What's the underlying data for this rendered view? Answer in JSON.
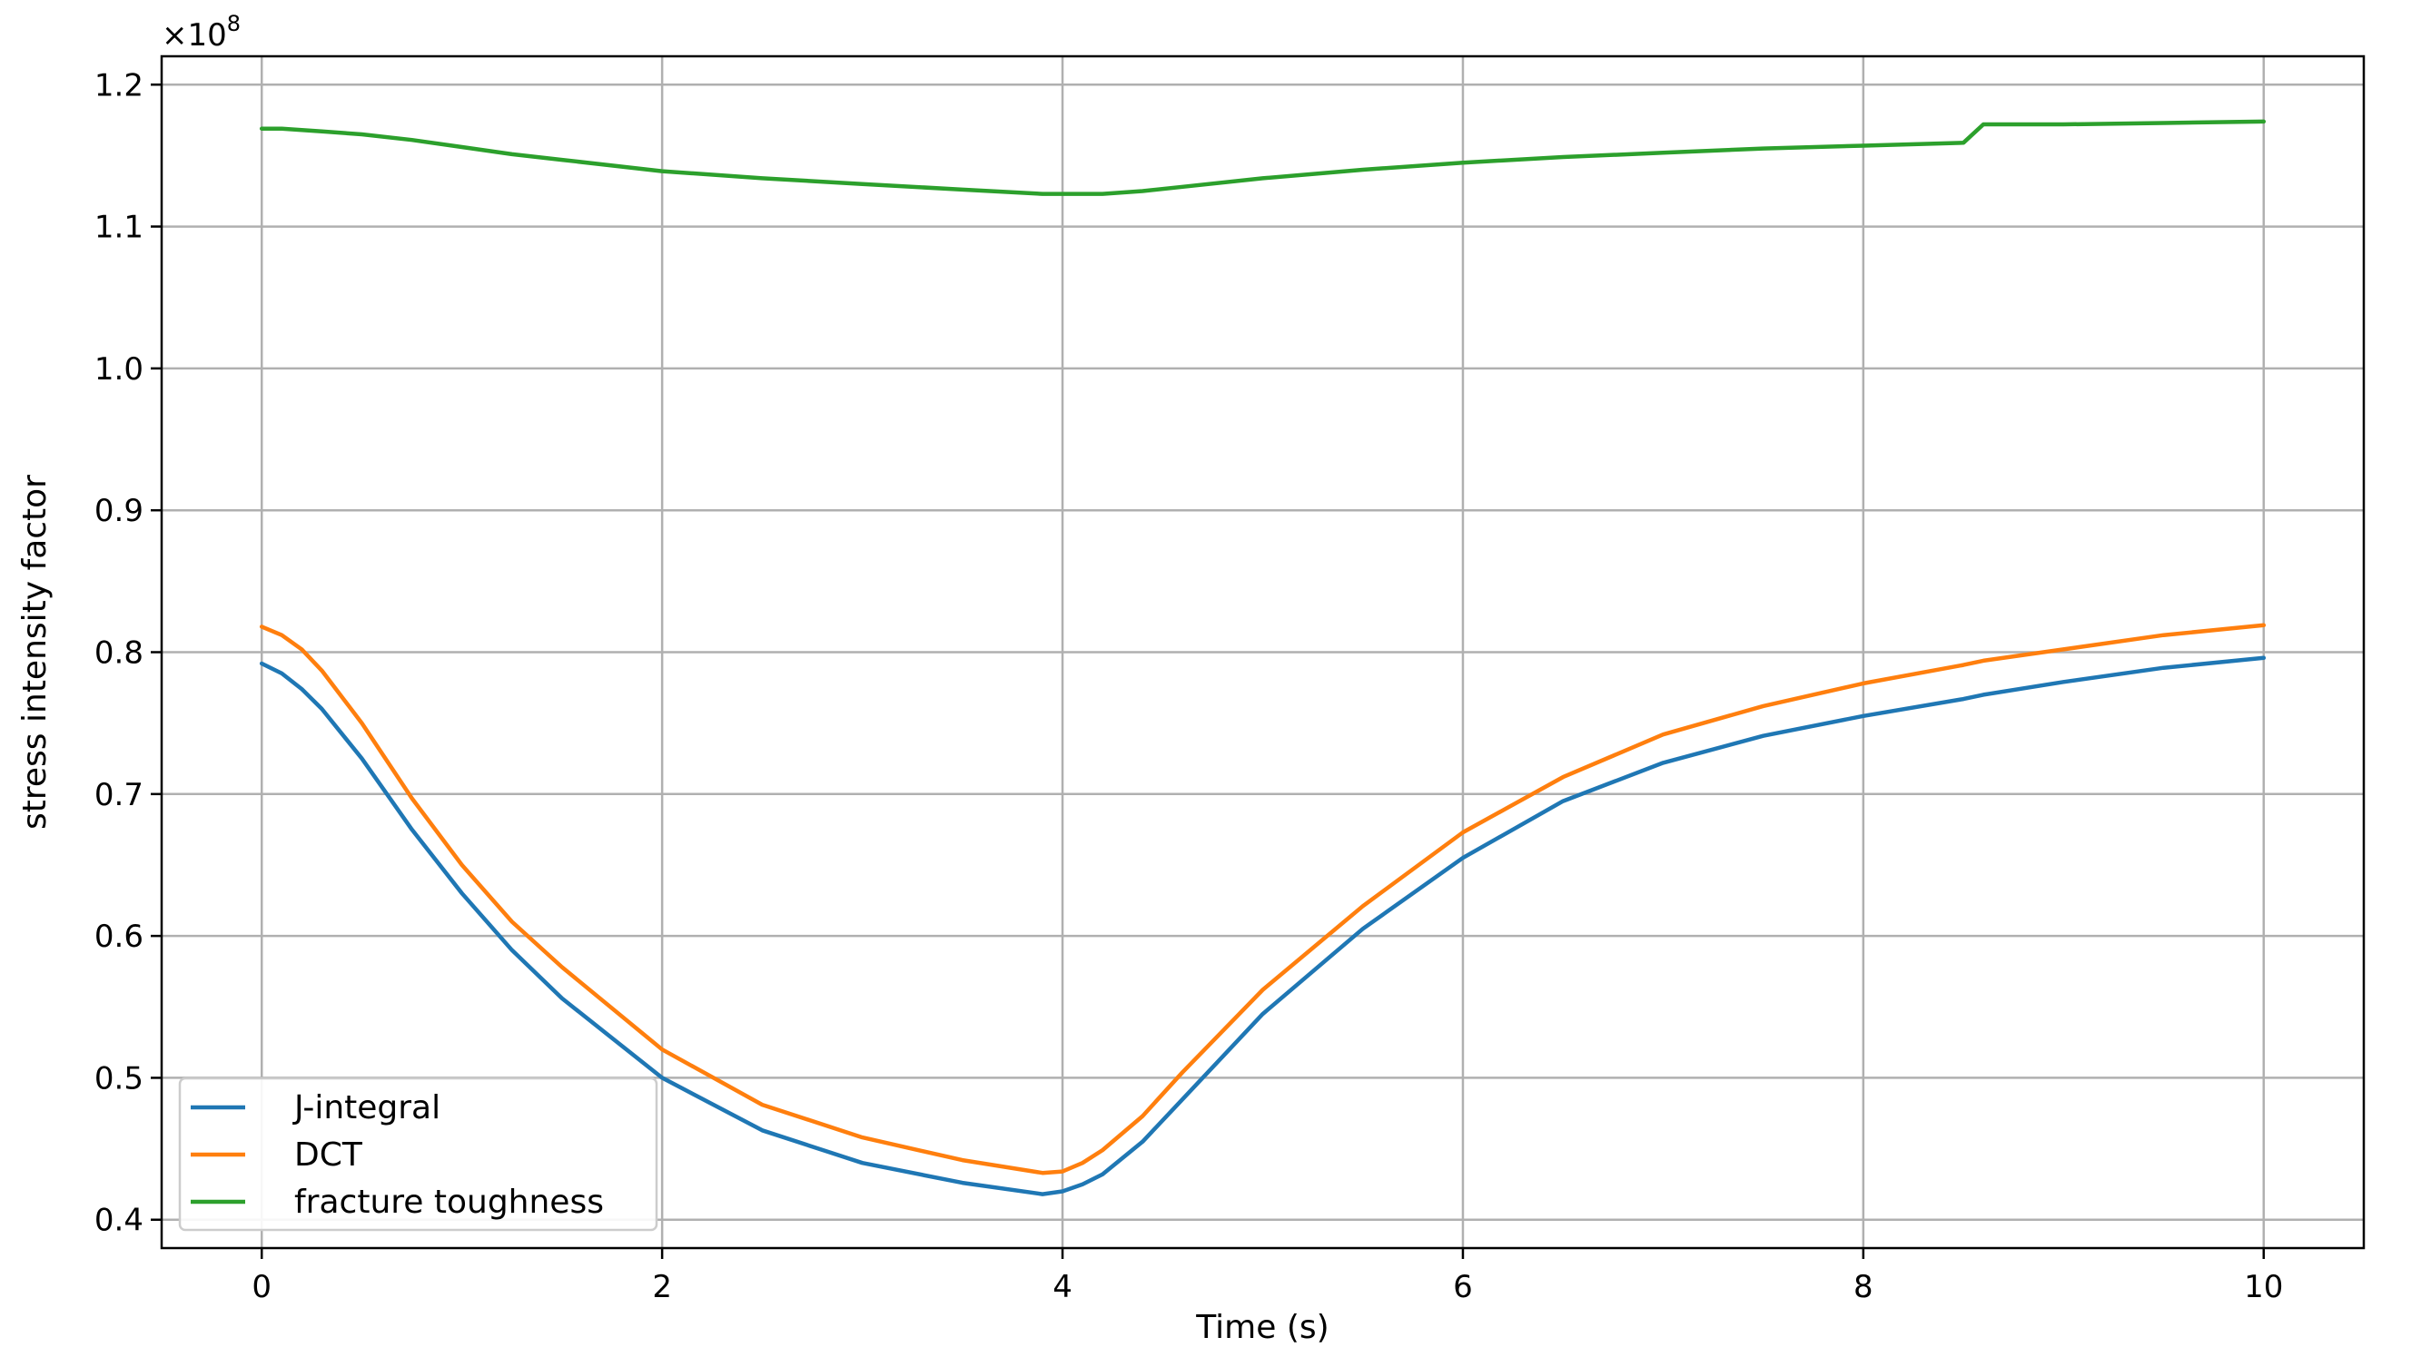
{
  "chart_data": {
    "type": "line",
    "title": "",
    "xlabel": "Time (s)",
    "ylabel": "stress intensity factor",
    "xlim": [
      -0.5,
      10.5
    ],
    "ylim": [
      0.38,
      1.22
    ],
    "offset_text": "×10",
    "offset_exponent": "8",
    "grid": true,
    "legend_position": "lower-left",
    "x_ticks": [
      0,
      2,
      4,
      6,
      8,
      10
    ],
    "x_tick_labels": [
      "0",
      "2",
      "4",
      "6",
      "8",
      "10"
    ],
    "y_ticks": [
      0.4,
      0.5,
      0.6,
      0.7,
      0.8,
      0.9,
      1.0,
      1.1,
      1.2
    ],
    "y_tick_labels": [
      "0.4",
      "0.5",
      "0.6",
      "0.7",
      "0.8",
      "0.9",
      "1.0",
      "1.1",
      "1.2"
    ],
    "x": [
      0,
      0.1,
      0.2,
      0.3,
      0.5,
      0.75,
      1.0,
      1.25,
      1.5,
      2.0,
      2.5,
      3.0,
      3.5,
      3.9,
      4.0,
      4.1,
      4.2,
      4.4,
      4.6,
      5.0,
      5.5,
      6.0,
      6.5,
      7.0,
      7.5,
      8.0,
      8.5,
      8.6,
      9.0,
      9.5,
      10.0
    ],
    "series": [
      {
        "name": "J-integral",
        "color": "#1f77b4",
        "values": [
          0.792,
          0.785,
          0.774,
          0.76,
          0.725,
          0.675,
          0.63,
          0.59,
          0.556,
          0.5,
          0.463,
          0.44,
          0.426,
          0.418,
          0.42,
          0.425,
          0.432,
          0.455,
          0.485,
          0.545,
          0.605,
          0.655,
          0.695,
          0.722,
          0.741,
          0.755,
          0.767,
          0.77,
          0.779,
          0.789,
          0.796
        ]
      },
      {
        "name": "DCT",
        "color": "#ff7f0e",
        "values": [
          0.818,
          0.812,
          0.802,
          0.787,
          0.75,
          0.697,
          0.65,
          0.61,
          0.578,
          0.52,
          0.481,
          0.458,
          0.442,
          0.433,
          0.434,
          0.44,
          0.449,
          0.473,
          0.504,
          0.562,
          0.621,
          0.673,
          0.712,
          0.742,
          0.762,
          0.778,
          0.791,
          0.794,
          0.802,
          0.812,
          0.819
        ]
      },
      {
        "name": "fracture toughness",
        "color": "#2ca02c",
        "values": [
          1.169,
          1.169,
          1.168,
          1.167,
          1.165,
          1.161,
          1.156,
          1.151,
          1.147,
          1.139,
          1.134,
          1.13,
          1.126,
          1.123,
          1.123,
          1.123,
          1.123,
          1.125,
          1.128,
          1.134,
          1.14,
          1.145,
          1.149,
          1.152,
          1.155,
          1.157,
          1.159,
          1.172,
          1.172,
          1.173,
          1.174
        ]
      }
    ]
  }
}
